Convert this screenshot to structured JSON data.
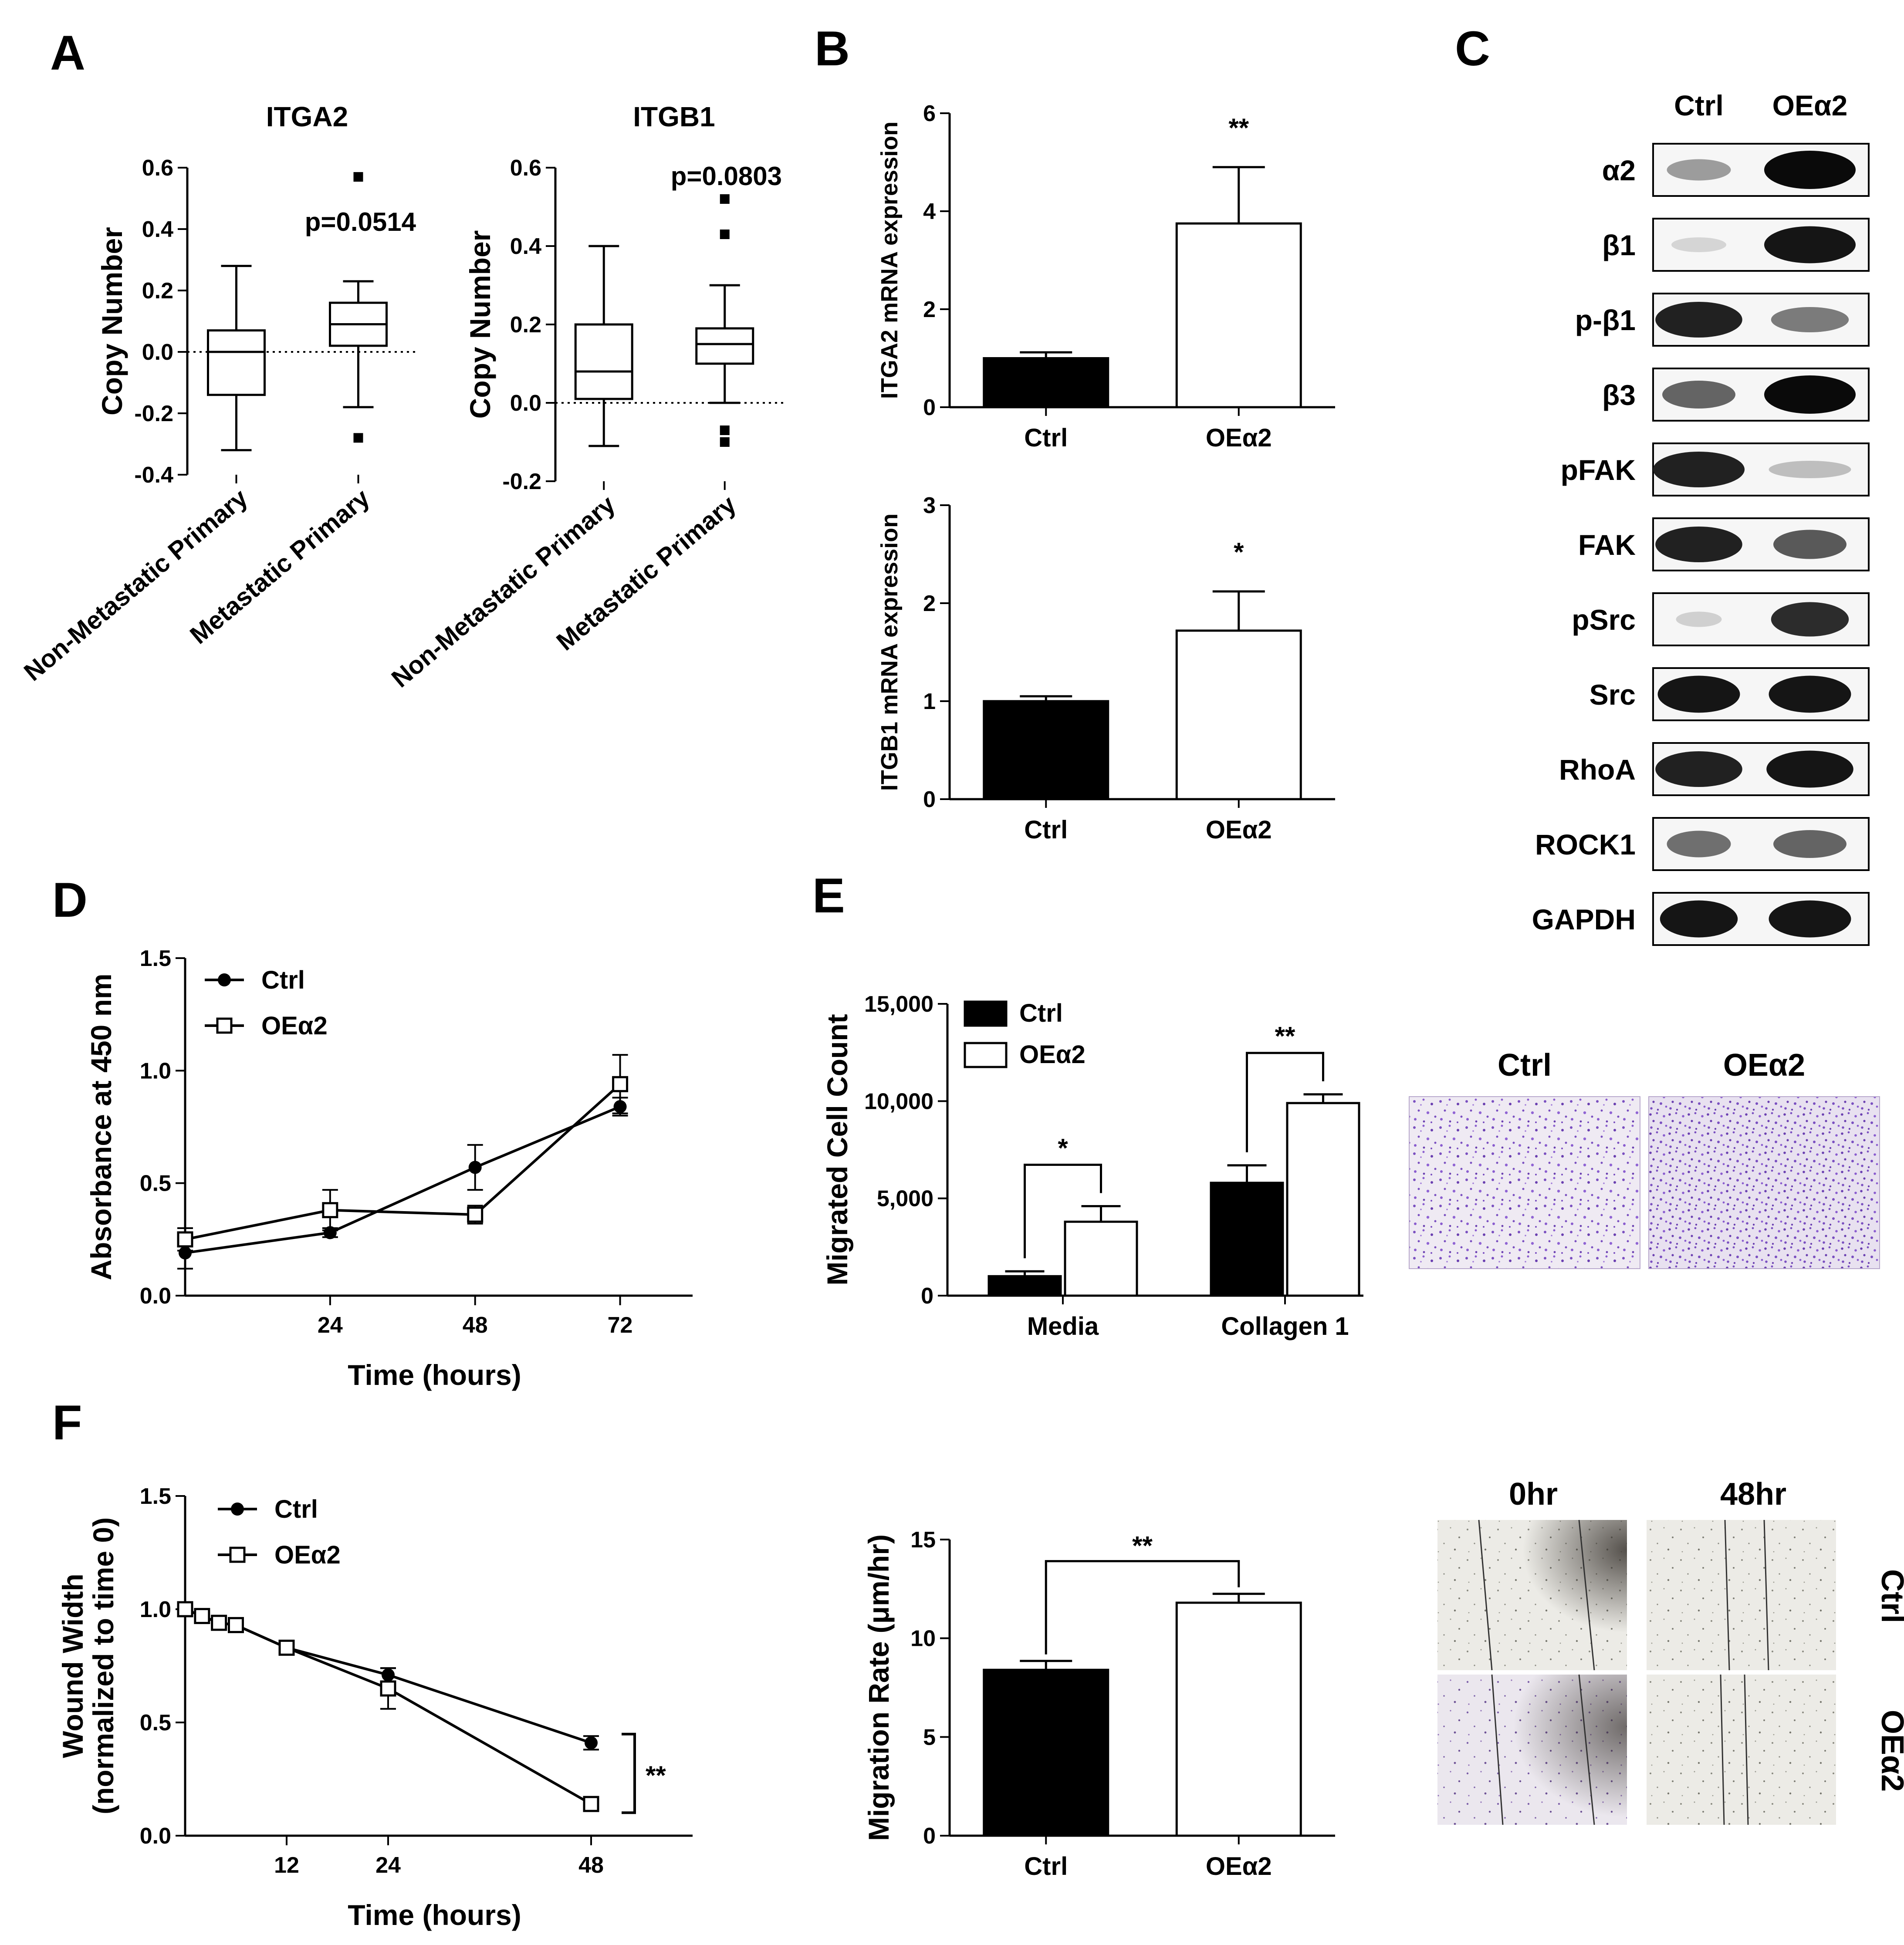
{
  "panels": {
    "A": "A",
    "B": "B",
    "C": "C",
    "D": "D",
    "E": "E",
    "F": "F"
  },
  "chart_data": [
    {
      "id": "A-ITGA2",
      "type": "box",
      "title": "ITGA2",
      "xlabel": "",
      "ylabel": "Copy Number",
      "ylim": [
        -0.4,
        0.6
      ],
      "yticks": [
        "0.6",
        "0.4",
        "0.2",
        "0.0",
        "-0.2",
        "-0.4"
      ],
      "categories": [
        "Non-Metastatic Primary",
        "Metastatic Primary"
      ],
      "boxes": [
        {
          "min": -0.32,
          "q1": -0.14,
          "median": 0.0,
          "q3": 0.07,
          "max": 0.28,
          "outliers": []
        },
        {
          "min": -0.18,
          "q1": 0.02,
          "median": 0.09,
          "q3": 0.16,
          "max": 0.23,
          "outliers": [
            0.57,
            -0.28
          ]
        }
      ],
      "annotation": "p=0.0514",
      "reference_line": 0.0
    },
    {
      "id": "A-ITGB1",
      "type": "box",
      "title": "ITGB1",
      "xlabel": "",
      "ylabel": "Copy Number",
      "ylim": [
        -0.2,
        0.6
      ],
      "yticks": [
        "0.6",
        "0.4",
        "0.2",
        "0.0",
        "-0.2"
      ],
      "categories": [
        "Non-Metastatic Primary",
        "Metastatic Primary"
      ],
      "boxes": [
        {
          "min": -0.11,
          "q1": 0.01,
          "median": 0.08,
          "q3": 0.2,
          "max": 0.4,
          "outliers": []
        },
        {
          "min": 0.0,
          "q1": 0.1,
          "median": 0.15,
          "q3": 0.19,
          "max": 0.3,
          "outliers": [
            0.52,
            0.43,
            -0.07,
            -0.1
          ]
        }
      ],
      "annotation": "p=0.0803",
      "reference_line": 0.0
    },
    {
      "id": "B-ITGA2",
      "type": "bar",
      "title": "",
      "xlabel": "",
      "ylabel": "ITGA2 mRNA expression",
      "ylim": [
        0,
        6
      ],
      "yticks": [
        "0",
        "2",
        "4",
        "6"
      ],
      "categories": [
        "Ctrl",
        "OEα2"
      ],
      "values": [
        1.0,
        3.75
      ],
      "errors": [
        0.12,
        1.15
      ],
      "colors": [
        "#000000",
        "#ffffff"
      ],
      "significance": [
        "",
        "**"
      ]
    },
    {
      "id": "B-ITGB1",
      "type": "bar",
      "title": "",
      "xlabel": "",
      "ylabel": "ITGB1 mRNA expression",
      "ylim": [
        0,
        3
      ],
      "yticks": [
        "0",
        "1",
        "2",
        "3"
      ],
      "categories": [
        "Ctrl",
        "OEα2"
      ],
      "values": [
        1.0,
        1.72
      ],
      "errors": [
        0.05,
        0.4
      ],
      "colors": [
        "#000000",
        "#ffffff"
      ],
      "significance": [
        "",
        "*"
      ]
    },
    {
      "id": "D",
      "type": "line",
      "title": "",
      "xlabel": "Time (hours)",
      "ylabel": "Absorbance at 450 nm",
      "xlim": [
        0,
        84
      ],
      "ylim": [
        0,
        1.5
      ],
      "xticks": [
        "24",
        "48",
        "72"
      ],
      "yticks": [
        "0.0",
        "0.5",
        "1.0",
        "1.5"
      ],
      "legend": "top-left",
      "series": [
        {
          "name": "Ctrl",
          "marker": "circle-filled",
          "x": [
            0,
            24,
            48,
            72
          ],
          "y": [
            0.19,
            0.28,
            0.57,
            0.84
          ],
          "err": [
            0.07,
            0.02,
            0.1,
            0.04
          ]
        },
        {
          "name": "OEα2",
          "marker": "square-open",
          "x": [
            0,
            24,
            48,
            72
          ],
          "y": [
            0.25,
            0.38,
            0.36,
            0.94
          ],
          "err": [
            0.05,
            0.09,
            0.04,
            0.13
          ]
        }
      ]
    },
    {
      "id": "E",
      "type": "bar",
      "title": "",
      "xlabel": "",
      "ylabel": "Migrated Cell Count",
      "ylim": [
        0,
        15000
      ],
      "yticks": [
        "0",
        "5,000",
        "10,000",
        "15,000"
      ],
      "categories": [
        "Media",
        "Collagen 1"
      ],
      "legend": "top-left",
      "series": [
        {
          "name": "Ctrl",
          "color": "#000000",
          "values": [
            1000,
            5800
          ],
          "errors": [
            250,
            900
          ]
        },
        {
          "name": "OEα2",
          "color": "#ffffff",
          "values": [
            3800,
            9900
          ],
          "errors": [
            800,
            450
          ]
        }
      ],
      "significance": [
        "*",
        "**"
      ]
    },
    {
      "id": "F-wound",
      "type": "line",
      "title": "",
      "xlabel": "Time (hours)",
      "ylabel": [
        "Wound Width",
        "(normalized to time 0)"
      ],
      "xlim": [
        0,
        60
      ],
      "ylim": [
        0,
        1.5
      ],
      "xticks": [
        "12",
        "24",
        "48"
      ],
      "yticks": [
        "0.0",
        "0.5",
        "1.0",
        "1.5"
      ],
      "legend": "top-left",
      "series": [
        {
          "name": "Ctrl",
          "marker": "circle-filled",
          "x": [
            0,
            2,
            4,
            6,
            12,
            24,
            48
          ],
          "y": [
            1.0,
            0.97,
            0.94,
            0.93,
            0.83,
            0.71,
            0.41
          ],
          "err": [
            0.01,
            0.01,
            0.01,
            0.01,
            0.02,
            0.03,
            0.03
          ]
        },
        {
          "name": "OEα2",
          "marker": "square-open",
          "x": [
            0,
            2,
            4,
            6,
            12,
            24,
            48
          ],
          "y": [
            1.0,
            0.97,
            0.94,
            0.93,
            0.83,
            0.65,
            0.14
          ],
          "err": [
            0.01,
            0.01,
            0.01,
            0.01,
            0.02,
            0.09,
            0.01
          ]
        }
      ],
      "significance": "**"
    },
    {
      "id": "F-rate",
      "type": "bar",
      "title": "",
      "xlabel": "",
      "ylabel": "Migration Rate (μm/hr)",
      "ylim": [
        0,
        15
      ],
      "yticks": [
        "0",
        "5",
        "10",
        "15"
      ],
      "categories": [
        "Ctrl",
        "OEα2"
      ],
      "values": [
        8.4,
        11.8
      ],
      "errors": [
        0.45,
        0.45
      ],
      "colors": [
        "#000000",
        "#ffffff"
      ],
      "significance": "**"
    }
  ],
  "western": {
    "columns": [
      "Ctrl",
      "OEα2"
    ],
    "rows": [
      {
        "label": "α2",
        "intensity": [
          0.35,
          1.0
        ],
        "width": [
          0.7,
          1.0
        ]
      },
      {
        "label": "β1",
        "intensity": [
          0.1,
          0.95
        ],
        "width": [
          0.6,
          1.0
        ]
      },
      {
        "label": "p-β1",
        "intensity": [
          0.9,
          0.5
        ],
        "width": [
          0.95,
          0.85
        ]
      },
      {
        "label": "β3",
        "intensity": [
          0.6,
          1.0
        ],
        "width": [
          0.8,
          1.0
        ]
      },
      {
        "label": "pFAK",
        "intensity": [
          0.9,
          0.2
        ],
        "width": [
          1.0,
          0.9
        ]
      },
      {
        "label": "FAK",
        "intensity": [
          0.9,
          0.65
        ],
        "width": [
          0.95,
          0.8
        ]
      },
      {
        "label": "pSrc",
        "intensity": [
          0.12,
          0.85
        ],
        "width": [
          0.5,
          0.85
        ]
      },
      {
        "label": "Src",
        "intensity": [
          0.95,
          0.95
        ],
        "width": [
          0.9,
          0.9
        ]
      },
      {
        "label": "RhoA",
        "intensity": [
          0.9,
          0.95
        ],
        "width": [
          0.95,
          0.95
        ]
      },
      {
        "label": "ROCK1",
        "intensity": [
          0.55,
          0.6
        ],
        "width": [
          0.7,
          0.8
        ]
      },
      {
        "label": "GAPDH",
        "intensity": [
          0.95,
          0.95
        ],
        "width": [
          0.85,
          0.9
        ]
      }
    ]
  },
  "micrographs": {
    "E": {
      "columns": [
        "Ctrl",
        "OEα2"
      ]
    },
    "F": {
      "columns": [
        "0hr",
        "48hr"
      ],
      "rows": [
        "Ctrl",
        "OEα2"
      ]
    }
  },
  "colors": {
    "stain": "#7a4fc0",
    "field": "#f1eef3",
    "scratch": "#efeee8"
  }
}
